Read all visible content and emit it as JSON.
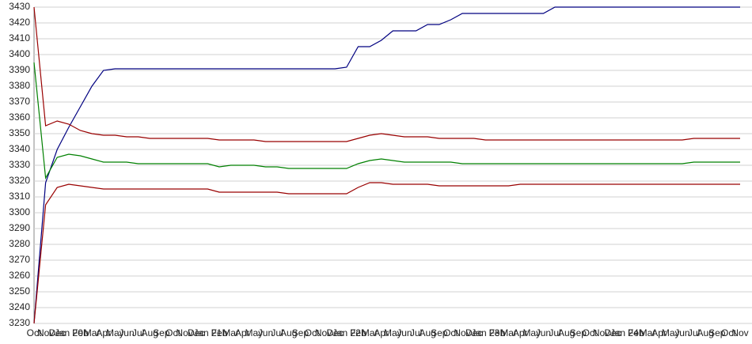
{
  "chart_data": {
    "type": "line",
    "categories": [
      "Oct",
      "Nov",
      "Dec",
      "Jan 20",
      "Feb",
      "Mar",
      "Apr",
      "May",
      "Jun",
      "Jul",
      "Aug",
      "Sep",
      "Oct",
      "Nov",
      "Dec",
      "Jan 21",
      "Feb",
      "Mar",
      "Apr",
      "May",
      "Jun",
      "Jul",
      "Aug",
      "Sep",
      "Oct",
      "Nov",
      "Dec",
      "Jan 22",
      "Feb",
      "Mar",
      "Apr",
      "May",
      "Jun",
      "Jul",
      "Aug",
      "Sep",
      "Oct",
      "Nov",
      "Dec",
      "Jan 23",
      "Feb",
      "Mar",
      "Apr",
      "May",
      "Jun",
      "Jul",
      "Aug",
      "Sep",
      "Oct",
      "Nov",
      "Dec",
      "Jan 24",
      "Feb",
      "Mar",
      "Apr",
      "May",
      "Jun",
      "Jul",
      "Aug",
      "Sep",
      "Oct",
      "Nov"
    ],
    "series": [
      {
        "color": "#000080",
        "values": [
          3230,
          3319,
          3340,
          3354,
          3367,
          3380,
          3390,
          3391,
          3391,
          3391,
          3391,
          3391,
          3391,
          3391,
          3391,
          3391,
          3391,
          3391,
          3391,
          3391,
          3391,
          3391,
          3391,
          3391,
          3391,
          3391,
          3391,
          3392,
          3405,
          3405,
          3409,
          3415,
          3415,
          3415,
          3419,
          3419,
          3422,
          3426,
          3426,
          3426,
          3426,
          3426,
          3426,
          3426,
          3426,
          3430,
          3430,
          3430,
          3430,
          3430,
          3430,
          3430,
          3430,
          3430,
          3430,
          3430,
          3430,
          3430,
          3430,
          3430,
          3430,
          3430
        ]
      },
      {
        "color": "#990000",
        "values": [
          3430,
          3355,
          3358,
          3356,
          3352,
          3350,
          3349,
          3349,
          3348,
          3348,
          3347,
          3347,
          3347,
          3347,
          3347,
          3347,
          3346,
          3346,
          3346,
          3346,
          3345,
          3345,
          3345,
          3345,
          3345,
          3345,
          3345,
          3345,
          3347,
          3349,
          3350,
          3349,
          3348,
          3348,
          3348,
          3347,
          3347,
          3347,
          3347,
          3346,
          3346,
          3346,
          3346,
          3346,
          3346,
          3346,
          3346,
          3346,
          3346,
          3346,
          3346,
          3346,
          3346,
          3346,
          3346,
          3346,
          3346,
          3347,
          3347,
          3347,
          3347,
          3347
        ]
      },
      {
        "color": "#008000",
        "values": [
          3395,
          3322,
          3335,
          3337,
          3336,
          3334,
          3332,
          3332,
          3332,
          3331,
          3331,
          3331,
          3331,
          3331,
          3331,
          3331,
          3329,
          3330,
          3330,
          3330,
          3329,
          3329,
          3328,
          3328,
          3328,
          3328,
          3328,
          3328,
          3331,
          3333,
          3334,
          3333,
          3332,
          3332,
          3332,
          3332,
          3332,
          3331,
          3331,
          3331,
          3331,
          3331,
          3331,
          3331,
          3331,
          3331,
          3331,
          3331,
          3331,
          3331,
          3331,
          3331,
          3331,
          3331,
          3331,
          3331,
          3331,
          3332,
          3332,
          3332,
          3332,
          3332
        ]
      },
      {
        "color": "#990000",
        "values": [
          3230,
          3305,
          3316,
          3318,
          3317,
          3316,
          3315,
          3315,
          3315,
          3315,
          3315,
          3315,
          3315,
          3315,
          3315,
          3315,
          3313,
          3313,
          3313,
          3313,
          3313,
          3313,
          3312,
          3312,
          3312,
          3312,
          3312,
          3312,
          3316,
          3319,
          3319,
          3318,
          3318,
          3318,
          3318,
          3317,
          3317,
          3317,
          3317,
          3317,
          3317,
          3317,
          3318,
          3318,
          3318,
          3318,
          3318,
          3318,
          3318,
          3318,
          3318,
          3318,
          3318,
          3318,
          3318,
          3318,
          3318,
          3318,
          3318,
          3318,
          3318,
          3318
        ]
      }
    ],
    "ylim": [
      3230,
      3430
    ],
    "yticks": [
      3230,
      3240,
      3250,
      3260,
      3270,
      3280,
      3290,
      3300,
      3310,
      3320,
      3330,
      3340,
      3350,
      3360,
      3370,
      3380,
      3390,
      3400,
      3410,
      3420,
      3430
    ],
    "grid": true
  }
}
